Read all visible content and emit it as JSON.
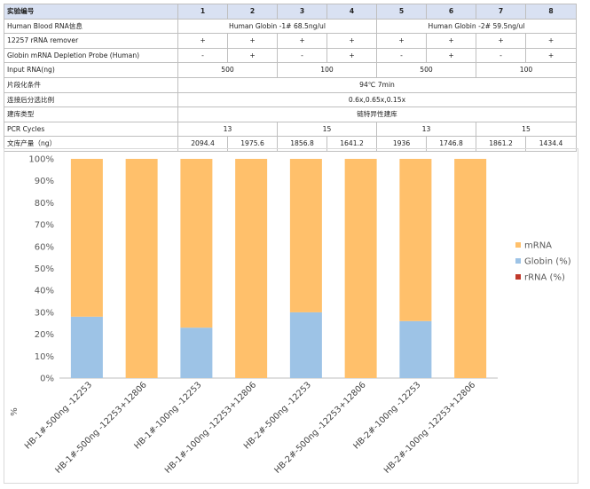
{
  "table": {
    "header": [
      "实验编号",
      "1",
      "2",
      "3",
      "4",
      "5",
      "6",
      "7",
      "8"
    ],
    "rows": [
      {
        "label": "Human Blood RNA信息",
        "cells": [
          {
            "text": "Human Globin -1#  68.5ng/ul",
            "span": 4
          },
          {
            "text": "Human Globin -2#  59.5ng/ul",
            "span": 4
          }
        ]
      },
      {
        "label": "12257 rRNA remover",
        "cells": [
          {
            "text": "+"
          },
          {
            "text": "+"
          },
          {
            "text": "+"
          },
          {
            "text": "+"
          },
          {
            "text": "+"
          },
          {
            "text": "+"
          },
          {
            "text": "+"
          },
          {
            "text": "+"
          }
        ]
      },
      {
        "label": "Globin mRNA Depletion Probe (Human)",
        "cells": [
          {
            "text": "-"
          },
          {
            "text": "+"
          },
          {
            "text": "-"
          },
          {
            "text": "+"
          },
          {
            "text": "-"
          },
          {
            "text": "+"
          },
          {
            "text": "-"
          },
          {
            "text": "+"
          }
        ]
      },
      {
        "label": "Input RNA(ng)",
        "cells": [
          {
            "text": "500",
            "span": 2
          },
          {
            "text": "100",
            "span": 2
          },
          {
            "text": "500",
            "span": 2
          },
          {
            "text": "100",
            "span": 2
          }
        ]
      },
      {
        "label": "片段化条件",
        "cells": [
          {
            "text": "94℃ 7min",
            "span": 8
          }
        ]
      },
      {
        "label": "连接后分选比例",
        "cells": [
          {
            "text": "0.6x,0.65x,0.15x",
            "span": 8
          }
        ]
      },
      {
        "label": "建库类型",
        "cells": [
          {
            "text": "链特异性建库",
            "span": 8
          }
        ]
      },
      {
        "label": "PCR Cycles",
        "cells": [
          {
            "text": "13",
            "span": 2
          },
          {
            "text": "15",
            "span": 2
          },
          {
            "text": "13",
            "span": 2
          },
          {
            "text": "15",
            "span": 2
          }
        ]
      },
      {
        "label": "文库产量（ng）",
        "cells": [
          {
            "text": "2094.4"
          },
          {
            "text": "1975.6"
          },
          {
            "text": "1856.8"
          },
          {
            "text": "1641.2"
          },
          {
            "text": "1936"
          },
          {
            "text": "1746.8"
          },
          {
            "text": "1861.2"
          },
          {
            "text": "1434.4"
          }
        ]
      }
    ]
  },
  "chart_data": {
    "type": "bar",
    "stacked": true,
    "percent": true,
    "title": "",
    "xlabel": "",
    "ylabel": "%",
    "ylim": [
      0,
      100
    ],
    "yticks": [
      "0%",
      "10%",
      "20%",
      "30%",
      "40%",
      "50%",
      "60%",
      "70%",
      "80%",
      "90%",
      "100%"
    ],
    "grid": false,
    "legend_position": "right",
    "categories": [
      "HB-1#-500ng -12253",
      "HB-1#-500ng -12253+12806",
      "HB-1#-100ng -12253",
      "HB-1#-100ng -12253+12806",
      "HB-2#-500ng -12253",
      "HB-2#-500ng -12253+12806",
      "HB-2#-100ng -12253",
      "HB-2#-100ng -12253+12806"
    ],
    "series": [
      {
        "name": "rRNA (%)",
        "color": "#c0392b",
        "values": [
          0,
          0,
          0,
          0,
          0,
          0,
          0,
          0
        ]
      },
      {
        "name": "Globin (%)",
        "color": "#9dc3e6",
        "values": [
          28,
          0,
          23,
          0,
          30,
          0,
          26,
          0
        ]
      },
      {
        "name": "mRNA",
        "color": "#ffc06b",
        "values": [
          72,
          100,
          77,
          100,
          70,
          100,
          74,
          100
        ]
      }
    ],
    "legend_order": [
      "mRNA",
      "Globin (%)",
      "rRNA (%)"
    ]
  }
}
